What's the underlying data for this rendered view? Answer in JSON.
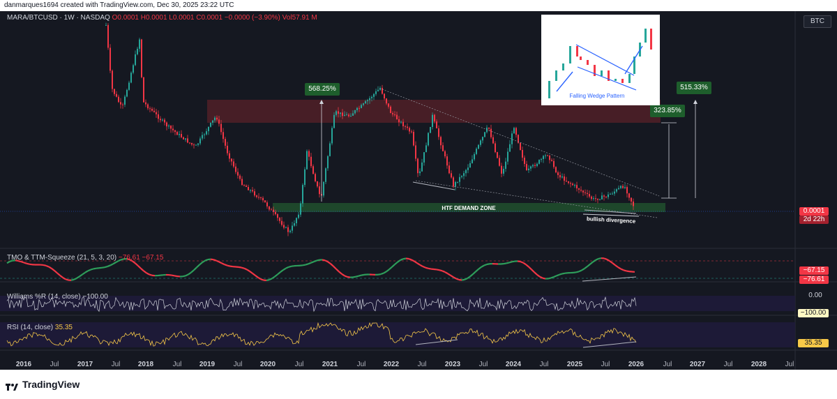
{
  "header": {
    "created_by": "danmarques1694 created with TradingView.com, Dec 30, 2025 23:22 UTC"
  },
  "main_legend": {
    "symbol": "MARA/BTCUSD · 1W · NASDAQ",
    "ohlc": "O0.0001  H0.0001  L0.0001  C0.0001  −0.0000 (−3.90%)",
    "volume": "Vol57.91 M"
  },
  "symbol_button": "BTC",
  "price_scale": {
    "current_price": "0.0001",
    "countdown": "2d 22h"
  },
  "annotations": {
    "demand_zone": "HTF DEMAND ZONE",
    "divergence": "bullish divergence",
    "gain_left": "568.25%",
    "gain_right_small": "323.85%",
    "gain_right_big": "515.33%",
    "inset_caption": "Falling Wedge Pattern"
  },
  "indicators": {
    "tmo": {
      "label": "TMO & TTM-Squeeze (21, 5, 3, 20)",
      "v1": "−76.61",
      "v2": "−67.15",
      "tag_top": "−67.15",
      "tag_bottom": "−76.61"
    },
    "williams": {
      "label": "Williams %R (14, close)",
      "value": "−100.00",
      "scale_top": "0.00",
      "tag": "−100.00"
    },
    "rsi": {
      "label": "RSI (14, close)",
      "value": "35.35",
      "tag": "35.35"
    }
  },
  "footer": {
    "brand": "TradingView"
  },
  "colors": {
    "background": "#151821",
    "up": "#26a69a",
    "down": "#f23645",
    "zone_supply": "#4a1f27",
    "zone_demand": "#1f4a2c",
    "rsi_line": "#f7c948",
    "williams_line": "#d1d4dc",
    "band": "#1e1b3a"
  },
  "chart_data": {
    "type": "candlestick",
    "x_axis": {
      "tick_labels": [
        "2016",
        "Jul",
        "2017",
        "Jul",
        "2018",
        "Jul",
        "2019",
        "Jul",
        "2020",
        "Jul",
        "2021",
        "Jul",
        "2022",
        "Jul",
        "2023",
        "Jul",
        "2024",
        "Jul",
        "2025",
        "Jul",
        "2026",
        "Jul",
        "2027",
        "Jul",
        "2028",
        "Jul"
      ]
    },
    "key_points": [
      {
        "date": "2016-09",
        "level": "top"
      },
      {
        "date": "2020-05",
        "level": "bottom"
      },
      {
        "date": "2021-10",
        "level": "local high"
      },
      {
        "date": "2025-12",
        "price": 0.0001
      }
    ],
    "indicators": {
      "tmo": [
        -76.61,
        -67.15
      ],
      "williams_r": -100.0,
      "rsi": 35.35
    }
  }
}
